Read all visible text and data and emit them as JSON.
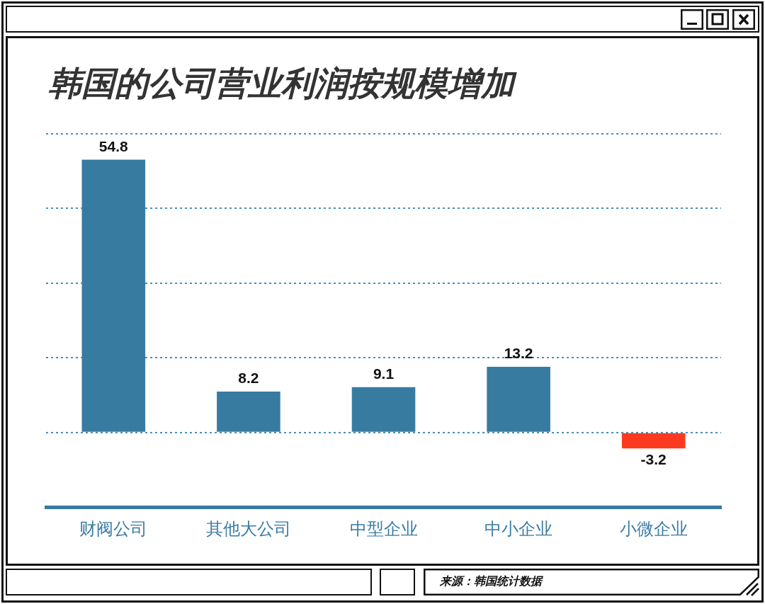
{
  "chart_data": {
    "type": "bar",
    "title": "韩国的公司营业利润按规模增加",
    "categories": [
      "财阀公司",
      "其他大公司",
      "中型企业",
      "中小企业",
      "小微企业"
    ],
    "values": [
      54.8,
      8.2,
      9.1,
      13.2,
      -3.2
    ],
    "colors": [
      "#387ba1",
      "#387ba1",
      "#387ba1",
      "#387ba1",
      "#fc3a1f"
    ],
    "ylim": [
      -15,
      60
    ],
    "yticks": [
      {
        "value": 0,
        "label": null
      },
      {
        "value": 15,
        "label": null
      },
      {
        "value": 30,
        "label": null
      },
      {
        "value": 45,
        "label": null
      },
      {
        "value": 60,
        "label": null
      }
    ],
    "grid": "y",
    "tick_labels": "x",
    "data_labels": true,
    "annotations": [
      "来源：韩国统计数据"
    ]
  }
}
